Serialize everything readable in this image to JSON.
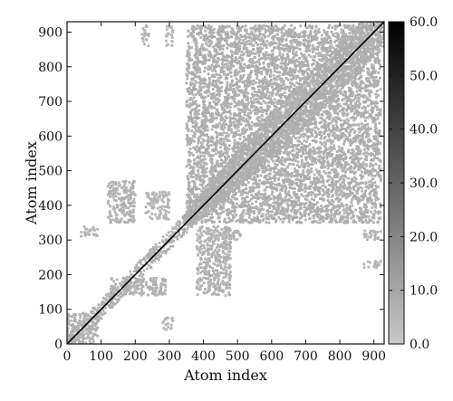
{
  "chart_data": {
    "type": "heatmap",
    "title": "",
    "xlabel": "Atom index",
    "ylabel": "Atom index",
    "xlim": [
      0,
      930
    ],
    "ylim": [
      0,
      930
    ],
    "xticks": [
      0,
      100,
      200,
      300,
      400,
      500,
      600,
      700,
      800,
      900
    ],
    "yticks": [
      0,
      100,
      200,
      300,
      400,
      500,
      600,
      700,
      800,
      900
    ],
    "colorbar": {
      "range": [
        0,
        60
      ],
      "ticks": [
        "60.0",
        "50.0",
        "40.0",
        "30.0",
        "20.0",
        "10.0",
        "0.0"
      ],
      "tick_values": [
        60,
        50,
        40,
        30,
        20,
        10,
        0
      ],
      "colormap": "grayscale (light gray to black)"
    },
    "diagonal": {
      "from": [
        0,
        0
      ],
      "to": [
        930,
        930
      ],
      "value": 60
    },
    "band_halfwidth": 70,
    "blocks": [
      {
        "x": [
          0,
          90
        ],
        "y": [
          0,
          90
        ],
        "value": 5
      },
      {
        "x": [
          40,
          90
        ],
        "y": [
          310,
          340
        ],
        "value": 4
      },
      {
        "x": [
          350,
          920
        ],
        "y": [
          350,
          920
        ],
        "value": 6
      },
      {
        "x": [
          120,
          290
        ],
        "y": [
          140,
          190
        ],
        "value": 5
      },
      {
        "x": [
          120,
          200
        ],
        "y": [
          350,
          470
        ],
        "value": 5
      },
      {
        "x": [
          230,
          300
        ],
        "y": [
          360,
          440
        ],
        "value": 4
      },
      {
        "x": [
          280,
          310
        ],
        "y": [
          40,
          80
        ],
        "value": 4
      },
      {
        "x": [
          380,
          480
        ],
        "y": [
          140,
          340
        ],
        "value": 5
      },
      {
        "x": [
          410,
          510
        ],
        "y": [
          300,
          330
        ],
        "value": 4
      },
      {
        "x": [
          220,
          240
        ],
        "y": [
          860,
          920
        ],
        "value": 4
      },
      {
        "x": [
          290,
          310
        ],
        "y": [
          860,
          920
        ],
        "value": 4
      },
      {
        "x": [
          870,
          920
        ],
        "y": [
          300,
          330
        ],
        "value": 4
      },
      {
        "x": [
          870,
          920
        ],
        "y": [
          220,
          240
        ],
        "value": 4
      }
    ]
  }
}
